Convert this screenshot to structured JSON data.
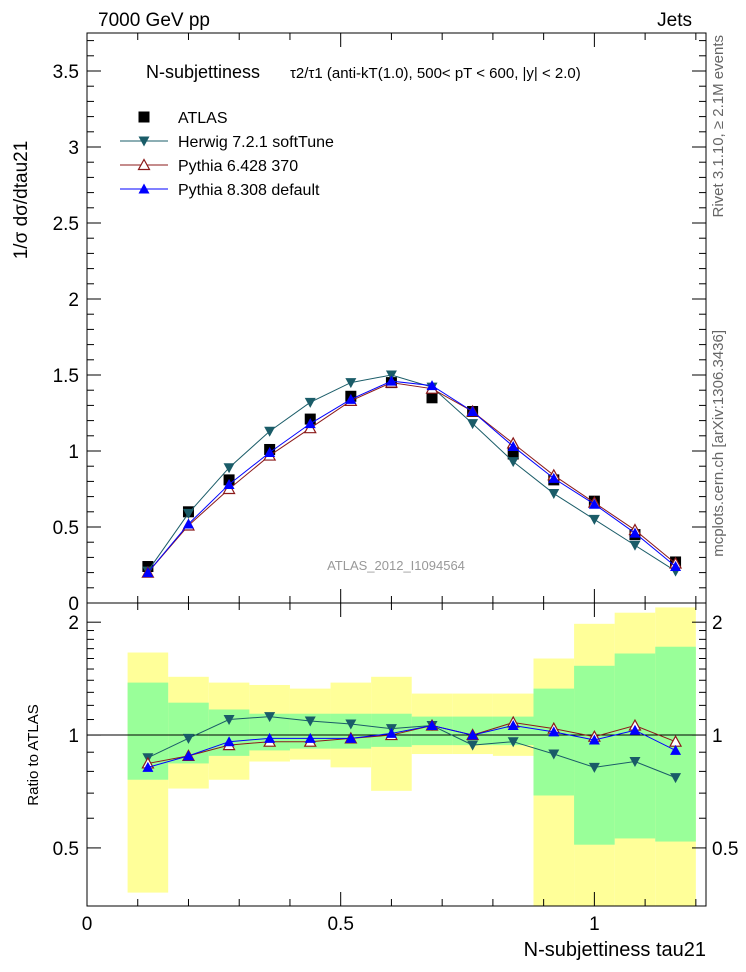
{
  "header": {
    "left": "7000 GeV pp",
    "right": "Jets"
  },
  "title": {
    "prefix": "N-subjettiness",
    "main": "τ2/τ1 (anti-kT(1.0), 500< pT < 600, |y| < 2.0)"
  },
  "side_labels": {
    "top": "Rivet 3.1.10, ≥ 2.1M events",
    "bottom": "mcplots.cern.ch [arXiv:1306.3436]"
  },
  "watermark": "ATLAS_2012_I1094564",
  "axis_labels": {
    "y_main": "1/σ dσ/dtau21",
    "y_ratio": "Ratio to ATLAS",
    "x": "N-subjettiness tau21"
  },
  "chart_data": [
    {
      "type": "scatter",
      "panel": "main",
      "ylim": [
        0,
        3.75
      ],
      "xlim": [
        0,
        1.22
      ],
      "yticks": [
        "0",
        "0.5",
        "1",
        "1.5",
        "2",
        "2.5",
        "3",
        "3.5"
      ],
      "x": [
        0.12,
        0.2,
        0.28,
        0.36,
        0.44,
        0.52,
        0.6,
        0.68,
        0.76,
        0.84,
        0.92,
        1.0,
        1.08,
        1.16
      ],
      "series": [
        {
          "name": "ATLAS",
          "color": "#000000",
          "marker": "square",
          "line": false,
          "values": [
            0.24,
            0.6,
            0.81,
            1.01,
            1.21,
            1.36,
            1.45,
            1.35,
            1.26,
            0.98,
            0.81,
            0.67,
            0.45,
            0.27
          ]
        },
        {
          "name": "Herwig 7.2.1 softTune",
          "color": "#1a5c68",
          "marker": "triangle-down",
          "line": true,
          "values": [
            0.21,
            0.59,
            0.89,
            1.13,
            1.32,
            1.45,
            1.5,
            1.42,
            1.18,
            0.93,
            0.72,
            0.55,
            0.38,
            0.21
          ]
        },
        {
          "name": "Pythia 6.428 370",
          "color": "#8b1a1a",
          "marker": "triangle-open",
          "line": true,
          "values": [
            0.2,
            0.51,
            0.75,
            0.97,
            1.15,
            1.33,
            1.45,
            1.41,
            1.26,
            1.05,
            0.84,
            0.66,
            0.48,
            0.26
          ]
        },
        {
          "name": "Pythia 8.308 default",
          "color": "#0000ff",
          "marker": "triangle-up",
          "line": true,
          "values": [
            0.2,
            0.52,
            0.78,
            0.99,
            1.18,
            1.34,
            1.46,
            1.43,
            1.26,
            1.03,
            0.82,
            0.65,
            0.46,
            0.24
          ]
        }
      ]
    },
    {
      "type": "line",
      "panel": "ratio",
      "ylim": [
        0.35,
        2.25
      ],
      "yticks": [
        "0.5",
        "1",
        "2"
      ],
      "xlim": [
        0,
        1.22
      ],
      "xticks": [
        "0",
        "0.5",
        "1"
      ],
      "x": [
        0.12,
        0.2,
        0.28,
        0.36,
        0.44,
        0.52,
        0.6,
        0.68,
        0.76,
        0.84,
        0.92,
        1.0,
        1.08,
        1.16
      ],
      "bands": {
        "edges": [
          0.08,
          0.16,
          0.24,
          0.32,
          0.4,
          0.48,
          0.56,
          0.64,
          0.72,
          0.8,
          0.88,
          0.96,
          1.04,
          1.12,
          1.2
        ],
        "yellow": [
          [
            0.38,
            1.66
          ],
          [
            0.72,
            1.43
          ],
          [
            0.76,
            1.38
          ],
          [
            0.85,
            1.36
          ],
          [
            0.86,
            1.33
          ],
          [
            0.82,
            1.38
          ],
          [
            0.71,
            1.43
          ],
          [
            0.89,
            1.29
          ],
          [
            0.89,
            1.29
          ],
          [
            0.88,
            1.29
          ],
          [
            0.35,
            1.6
          ],
          [
            0.35,
            1.98
          ],
          [
            0.35,
            2.12
          ],
          [
            0.35,
            2.19
          ]
        ],
        "green": [
          [
            0.76,
            1.38
          ],
          [
            0.84,
            1.22
          ],
          [
            0.88,
            1.17
          ],
          [
            0.91,
            1.14
          ],
          [
            0.92,
            1.14
          ],
          [
            0.92,
            1.14
          ],
          [
            0.93,
            1.14
          ],
          [
            0.94,
            1.12
          ],
          [
            0.94,
            1.12
          ],
          [
            0.94,
            1.12
          ],
          [
            0.69,
            1.33
          ],
          [
            0.51,
            1.53
          ],
          [
            0.53,
            1.65
          ],
          [
            0.52,
            1.72
          ]
        ],
        "colors": {
          "yellow": "#ffff99",
          "green": "#99ff99"
        }
      },
      "series": [
        {
          "name": "Herwig 7.2.1 softTune",
          "color": "#1a5c68",
          "marker": "triangle-down",
          "values": [
            0.87,
            0.98,
            1.1,
            1.12,
            1.09,
            1.07,
            1.04,
            1.06,
            0.94,
            0.96,
            0.89,
            0.82,
            0.85,
            0.77
          ]
        },
        {
          "name": "Pythia 6.428 370",
          "color": "#8b1a1a",
          "marker": "triangle-open",
          "values": [
            0.84,
            0.88,
            0.94,
            0.96,
            0.96,
            0.98,
            1.0,
            1.06,
            1.0,
            1.08,
            1.04,
            0.99,
            1.06,
            0.96
          ]
        },
        {
          "name": "Pythia 8.308 default",
          "color": "#0000ff",
          "marker": "triangle-up",
          "values": [
            0.82,
            0.88,
            0.96,
            0.98,
            0.98,
            0.98,
            1.01,
            1.06,
            1.0,
            1.06,
            1.02,
            0.97,
            1.03,
            0.91
          ]
        }
      ]
    }
  ]
}
